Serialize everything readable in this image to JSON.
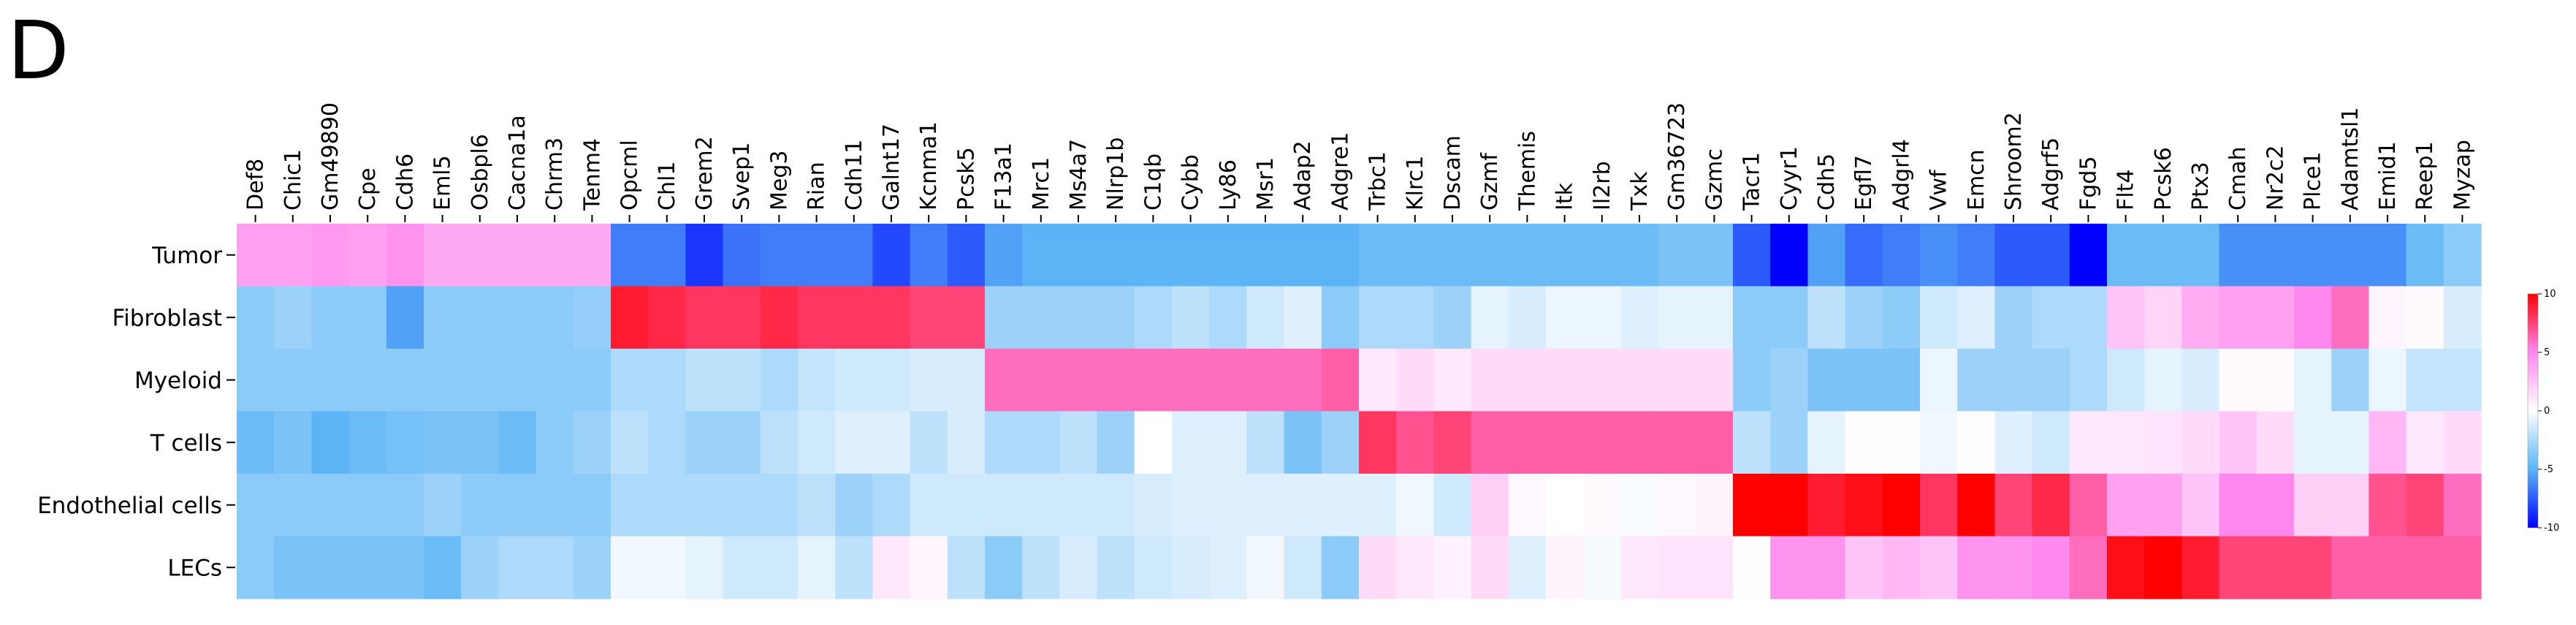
{
  "panel_label": "D",
  "chart_data": {
    "type": "heatmap",
    "rows": [
      "Tumor",
      "Fibroblast",
      "Myeloid",
      "T cells",
      "Endothelial cells",
      "LECs"
    ],
    "columns": [
      "Def8",
      "Chic1",
      "Gm49890",
      "Cpe",
      "Cdh6",
      "Eml5",
      "Osbpl6",
      "Cacna1a",
      "Chrm3",
      "Tenm4",
      "Opcml",
      "Chl1",
      "Grem2",
      "Svep1",
      "Meg3",
      "Rian",
      "Cdh11",
      "Galnt17",
      "Kcnma1",
      "Pcsk5",
      "F13a1",
      "Mrc1",
      "Ms4a7",
      "Nlrp1b",
      "C1qb",
      "Cybb",
      "Ly86",
      "Msr1",
      "Adap2",
      "Adgre1",
      "Trbc1",
      "Klrc1",
      "Dscam",
      "Gzmf",
      "Themis",
      "Itk",
      "Il2rb",
      "Txk",
      "Gm36723",
      "Gzmc",
      "Tacr1",
      "Cyyr1",
      "Cdh5",
      "Egfl7",
      "Adgrl4",
      "Vwf",
      "Emcn",
      "Shroom2",
      "Adgrf5",
      "Fgd5",
      "Flt4",
      "Pcsk6",
      "Ptx3",
      "Cmah",
      "Nr2c2",
      "Plce1",
      "Adamtsl1",
      "Emid1",
      "Reep1",
      "Myzap"
    ],
    "values": [
      [
        4,
        4,
        4.3,
        4,
        4.6,
        3.6,
        3.6,
        3.6,
        3.6,
        3.6,
        -6.5,
        -6.5,
        -8.5,
        -6.8,
        -6.5,
        -6.5,
        -6.5,
        -8,
        -6.5,
        -7.5,
        -5.5,
        -5,
        -5,
        -5,
        -5,
        -5,
        -5,
        -5,
        -5,
        -5,
        -4.5,
        -4.5,
        -4.5,
        -4.5,
        -4.5,
        -4.5,
        -4.5,
        -4.5,
        -4,
        -4,
        -7.5,
        -10,
        -5.5,
        -7,
        -6.5,
        -6,
        -6.5,
        -7.5,
        -7.5,
        -10,
        -4.5,
        -4.5,
        -4.5,
        -6,
        -6,
        -6,
        -6,
        -6,
        -4.5,
        -3.5
      ],
      [
        -3.5,
        -3,
        -3.5,
        -3.5,
        -5.5,
        -3.5,
        -3.5,
        -3.5,
        -3.5,
        -3.2,
        9,
        8.5,
        8,
        8,
        8.5,
        8,
        8,
        8,
        7.5,
        7.5,
        -3,
        -3,
        -3,
        -3,
        -2.5,
        -2,
        -2.5,
        -1.5,
        -1,
        -3.5,
        -2.5,
        -2.5,
        -3,
        -0.8,
        -1.2,
        -0.6,
        -0.6,
        -1,
        -0.8,
        -0.8,
        -3.5,
        -3.5,
        -2,
        -3,
        -3.5,
        -1.5,
        -1,
        -3,
        -2.5,
        -2.5,
        2.5,
        1.8,
        3.5,
        4,
        4,
        5,
        6,
        0.4,
        0.2,
        -1.2
      ],
      [
        -3.5,
        -3.5,
        -3.5,
        -3.5,
        -3.5,
        -3.5,
        -3.5,
        -3.5,
        -3.5,
        -3.5,
        -2.5,
        -2.5,
        -2,
        -2,
        -2.5,
        -1.8,
        -1.5,
        -1.5,
        -1.2,
        -1.2,
        6,
        6,
        6,
        6,
        6,
        6,
        6,
        6,
        6,
        6.5,
        1,
        1.5,
        1,
        1.5,
        1.5,
        1.5,
        1.5,
        1.5,
        1.5,
        1.5,
        -3.5,
        -3,
        -4,
        -4,
        -4,
        -0.6,
        -3,
        -3,
        -3,
        -2.5,
        -1.5,
        -0.8,
        -1.2,
        0.2,
        0.2,
        -0.8,
        -3,
        -0.6,
        -1.8,
        -1.8
      ],
      [
        -4.5,
        -4,
        -5,
        -4.5,
        -4.2,
        -4,
        -4,
        -4.5,
        -3.5,
        -3,
        -2,
        -2.5,
        -3,
        -3,
        -2,
        -1.5,
        -1,
        -1,
        -2,
        -1.2,
        -2.5,
        -2.5,
        -2,
        -3,
        0,
        -1,
        -1,
        -2,
        -4,
        -3,
        8,
        7,
        7.5,
        6.5,
        6.5,
        6.5,
        6.5,
        6.5,
        6.5,
        6.5,
        -2,
        -3,
        -0.8,
        0.1,
        0.1,
        -0.5,
        0.1,
        -1,
        -1.5,
        1,
        1,
        1.2,
        1.5,
        2.5,
        1.5,
        -0.8,
        -0.8,
        3,
        1,
        1.5
      ],
      [
        -3.5,
        -3.5,
        -3.5,
        -3.5,
        -3.5,
        -3,
        -3.5,
        -3.5,
        -3.5,
        -3.5,
        -2.5,
        -2.5,
        -2.5,
        -2.5,
        -2.5,
        -2,
        -3,
        -2.5,
        -1.5,
        -1.5,
        -1.5,
        -1.5,
        -1.5,
        -1.5,
        -1.2,
        -1,
        -1,
        -1,
        -1,
        -1,
        -1,
        -0.5,
        -1.5,
        2,
        0.3,
        0,
        0.2,
        -0.2,
        0.3,
        0.5,
        10,
        10,
        9,
        9.5,
        10,
        8,
        10,
        7.5,
        8.5,
        6.5,
        4,
        4,
        2.5,
        5,
        5,
        2,
        2,
        7,
        7.5,
        6
      ],
      [
        -3.5,
        -4,
        -4,
        -4,
        -4,
        -4.5,
        -3,
        -2.5,
        -2.5,
        -3,
        -0.4,
        -0.4,
        -0.8,
        -1.5,
        -1.5,
        -0.8,
        -2,
        1,
        0.4,
        -2,
        -3.5,
        -2,
        -1.2,
        -2,
        -1.5,
        -1.2,
        -1,
        -0.4,
        -1.5,
        -3.5,
        1.5,
        1,
        0.6,
        1.5,
        -1,
        0.5,
        -0.3,
        1,
        1.2,
        1.2,
        0.1,
        4.5,
        4.5,
        2.5,
        3,
        2.5,
        4.5,
        4.5,
        5,
        6,
        9.5,
        10,
        9,
        7.5,
        7.5,
        7.5,
        6.5,
        6.5,
        6.5,
        6.5
      ]
    ],
    "colorbar": {
      "range": [
        -10,
        10
      ],
      "ticks": [
        10,
        5,
        0,
        -5,
        -10
      ],
      "colors": [
        "#0000ff",
        "#5ab4f5",
        "#ffffff",
        "#ff88ee",
        "#ff0000"
      ]
    }
  }
}
